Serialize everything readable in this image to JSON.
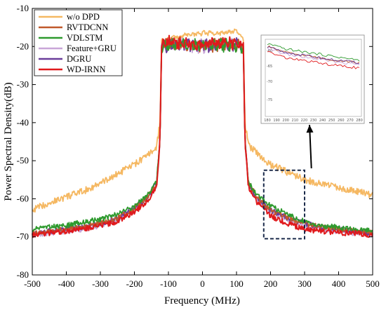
{
  "chart_data": {
    "type": "line",
    "title": "",
    "xlabel": "Frequency (MHz)",
    "ylabel": "Power Spectral Density(dB)",
    "xlim": [
      -500,
      500
    ],
    "ylim": [
      -80,
      -10
    ],
    "x_ticks": [
      "-500",
      "-400",
      "-300",
      "-200",
      "-100",
      "0",
      "100",
      "200",
      "300",
      "400",
      "500"
    ],
    "y_ticks": [
      "-10",
      "-20",
      "-30",
      "-40",
      "-50",
      "-60",
      "-70",
      "-80"
    ],
    "x_tick_values": [
      -500,
      -400,
      -300,
      -200,
      -100,
      0,
      100,
      200,
      300,
      400,
      500
    ],
    "y_tick_values": [
      -10,
      -20,
      -30,
      -40,
      -50,
      -60,
      -70,
      -80
    ],
    "legend_position": "top-left",
    "grid": false,
    "series": [
      {
        "name": "w/o DPD",
        "color": "#f5b862",
        "x": [
          -500,
          -450,
          -400,
          -350,
          -300,
          -250,
          -200,
          -160,
          -135,
          -125,
          -120,
          -100,
          -50,
          0,
          50,
          100,
          120,
          125,
          135,
          160,
          200,
          250,
          300,
          350,
          400,
          450,
          500
        ],
        "y": [
          -63,
          -61,
          -59.5,
          -58,
          -56,
          -53.5,
          -51,
          -48.5,
          -46.5,
          -40,
          -18.5,
          -18,
          -17,
          -16.5,
          -16.5,
          -16,
          -18,
          -40,
          -46,
          -48,
          -51,
          -53,
          -55,
          -56,
          -57,
          -58,
          -59
        ]
      },
      {
        "name": "RVTDCNN",
        "color": "#c0592b",
        "x": [
          -500,
          -450,
          -400,
          -350,
          -300,
          -250,
          -200,
          -160,
          -135,
          -125,
          -120,
          -100,
          -50,
          0,
          50,
          100,
          120,
          125,
          135,
          160,
          200,
          250,
          300,
          350,
          400,
          450,
          500
        ],
        "y": [
          -69,
          -68.5,
          -68,
          -67.5,
          -66.5,
          -65,
          -62.5,
          -59.5,
          -56,
          -45,
          -20,
          -19.5,
          -19.5,
          -20,
          -19.5,
          -19.5,
          -20,
          -45,
          -56,
          -59.5,
          -63,
          -65,
          -66.5,
          -67.5,
          -68,
          -68.5,
          -69
        ]
      },
      {
        "name": "VDLSTM",
        "color": "#2e9a2e",
        "x": [
          -500,
          -450,
          -400,
          -350,
          -300,
          -250,
          -200,
          -160,
          -135,
          -125,
          -120,
          -100,
          -50,
          0,
          50,
          100,
          120,
          125,
          135,
          160,
          200,
          250,
          300,
          350,
          400,
          450,
          500
        ],
        "y": [
          -68,
          -67.5,
          -67,
          -66,
          -65.5,
          -64,
          -62,
          -59,
          -55.5,
          -45,
          -20,
          -19.5,
          -19.5,
          -19.5,
          -19.5,
          -19.5,
          -20,
          -45,
          -55.5,
          -59,
          -62,
          -64,
          -66,
          -67,
          -67.5,
          -68,
          -68.5
        ]
      },
      {
        "name": "Feature+GRU",
        "color": "#c9a6d8",
        "x": [
          -500,
          -450,
          -400,
          -350,
          -300,
          -250,
          -200,
          -160,
          -135,
          -125,
          -120,
          -100,
          -50,
          0,
          50,
          100,
          120,
          125,
          135,
          160,
          200,
          250,
          300,
          350,
          400,
          450,
          500
        ],
        "y": [
          -69.5,
          -69,
          -68.5,
          -68,
          -67,
          -65.5,
          -63,
          -60,
          -56.5,
          -45,
          -20,
          -19.5,
          -19.5,
          -20,
          -19.5,
          -19.5,
          -20,
          -45,
          -56.5,
          -60,
          -63.5,
          -65.5,
          -67,
          -68,
          -68.5,
          -69,
          -69.5
        ]
      },
      {
        "name": "DGRU",
        "color": "#6a3d9a",
        "x": [
          -500,
          -450,
          -400,
          -350,
          -300,
          -250,
          -200,
          -160,
          -135,
          -125,
          -120,
          -100,
          -50,
          0,
          50,
          100,
          120,
          125,
          135,
          160,
          200,
          250,
          300,
          350,
          400,
          450,
          500
        ],
        "y": [
          -69,
          -68.5,
          -68,
          -67.5,
          -66.5,
          -65,
          -62.5,
          -59.5,
          -56,
          -45,
          -20,
          -19.5,
          -19.5,
          -20,
          -19.5,
          -19.5,
          -20,
          -45,
          -56,
          -60,
          -63,
          -65,
          -66.5,
          -67.5,
          -68,
          -68.5,
          -69
        ]
      },
      {
        "name": "WD-IRNN",
        "color": "#e0191c",
        "x": [
          -500,
          -450,
          -400,
          -350,
          -300,
          -250,
          -200,
          -160,
          -135,
          -125,
          -120,
          -100,
          -50,
          0,
          50,
          100,
          120,
          125,
          135,
          160,
          200,
          250,
          300,
          350,
          400,
          450,
          500
        ],
        "y": [
          -69.5,
          -69,
          -68.5,
          -68,
          -67,
          -66,
          -63.5,
          -60.5,
          -57,
          -45,
          -19.5,
          -19,
          -19,
          -19.5,
          -19,
          -19,
          -19.5,
          -45,
          -57,
          -61,
          -64.5,
          -66.5,
          -68,
          -68.5,
          -69,
          -69,
          -69.5
        ]
      }
    ],
    "annotations": {
      "zoom_box": {
        "x_range": [
          180,
          300
        ],
        "y_range": [
          -70.5,
          -52.5
        ],
        "style": "dashed"
      },
      "arrow_from": [
        320,
        -52
      ],
      "inset": {
        "x_ticks": [
          "180",
          "190",
          "200",
          "210",
          "220",
          "230",
          "240",
          "250",
          "260",
          "270",
          "280"
        ],
        "y_ticks": [
          "-60",
          "-65",
          "-70",
          "-75"
        ]
      }
    }
  }
}
